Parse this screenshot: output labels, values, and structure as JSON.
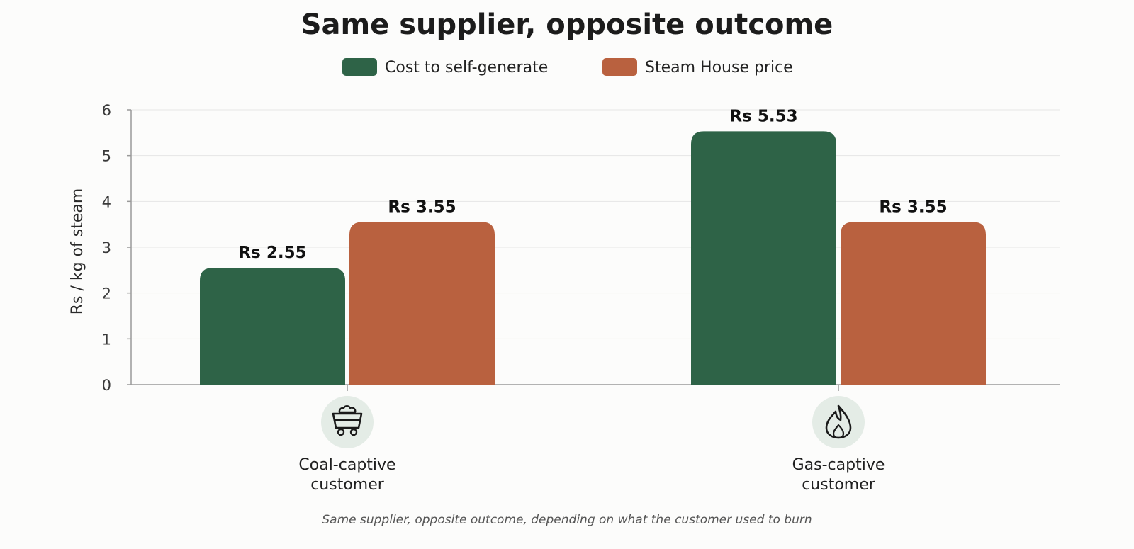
{
  "chart_data": {
    "type": "bar",
    "title": "Same supplier, opposite outcome",
    "ylabel": "Rs / kg of steam",
    "xlabel": "",
    "ylim": [
      0,
      6
    ],
    "yticks": [
      0,
      1,
      2,
      3,
      4,
      5,
      6
    ],
    "grid": true,
    "legend_position": "top-center",
    "categories": [
      "Coal-captive customer",
      "Gas-captive customer"
    ],
    "category_lines": [
      [
        "Coal-captive",
        "customer"
      ],
      [
        "Gas-captive",
        "customer"
      ]
    ],
    "category_icons": [
      "coal-cart-icon",
      "flame-icon"
    ],
    "series": [
      {
        "name": "Cost to self-generate",
        "values": [
          2.55,
          5.53
        ],
        "labels": [
          "Rs 2.55",
          "Rs 5.53"
        ],
        "color": "#2e6347"
      },
      {
        "name": "Steam House price",
        "values": [
          3.55,
          3.55
        ],
        "labels": [
          "Rs 3.55",
          "Rs 3.55"
        ],
        "color": "#b9613f"
      }
    ],
    "footnote": "Same supplier, opposite outcome, depending on what the customer used to burn"
  },
  "colors": {
    "grid": "#e6e6e6",
    "axis": "#9a9a9a",
    "icon_bg": "#e4ece6"
  }
}
